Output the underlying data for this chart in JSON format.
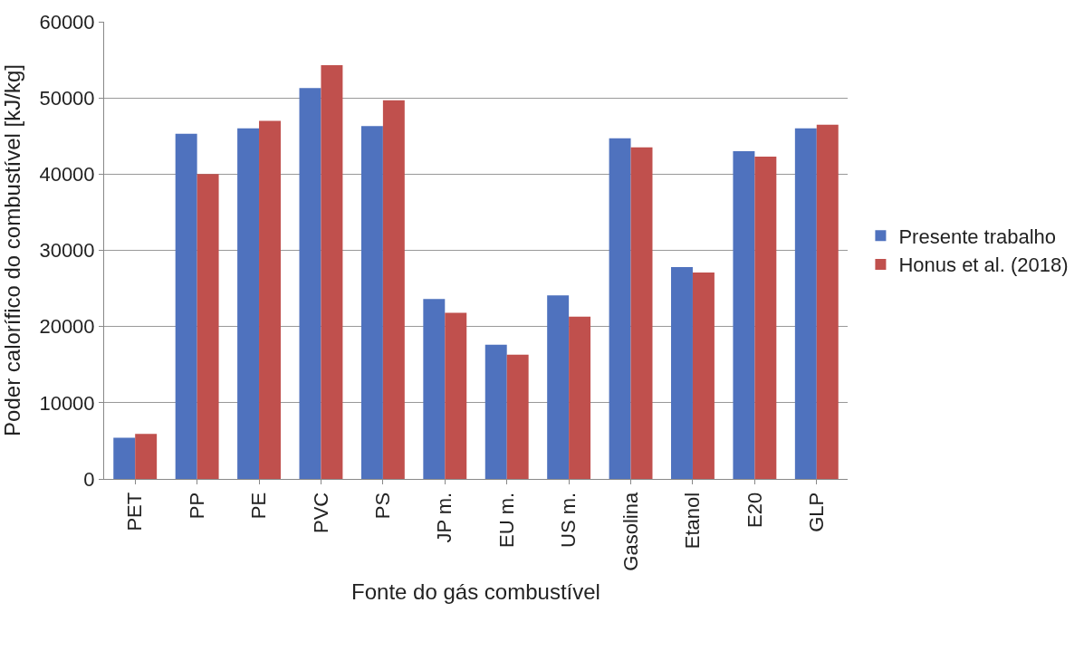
{
  "chart_data": {
    "type": "bar",
    "xlabel": "Fonte do gás combustível",
    "ylabel": "Poder calorífico do combustível [kJ/kg]",
    "categories": [
      "PET",
      "PP",
      "PE",
      "PVC",
      "PS",
      "JP m.",
      "EU m.",
      "US m.",
      "Gasolina",
      "Etanol",
      "E20",
      "GLP"
    ],
    "series": [
      {
        "name": "Presente trabalho",
        "color": "#4f72be",
        "values": [
          5400,
          45300,
          46000,
          51300,
          46300,
          23600,
          17600,
          24100,
          44700,
          27800,
          43000,
          46000
        ]
      },
      {
        "name": "Honus et al. (2018)",
        "color": "#c0504d",
        "values": [
          5900,
          40000,
          47000,
          54300,
          49700,
          21800,
          16300,
          21300,
          43500,
          27100,
          42300,
          46500
        ]
      }
    ],
    "ylim": [
      0,
      60000
    ],
    "yticks": [
      0,
      10000,
      20000,
      30000,
      40000,
      50000,
      60000
    ],
    "grid": "y",
    "legend": "right"
  }
}
